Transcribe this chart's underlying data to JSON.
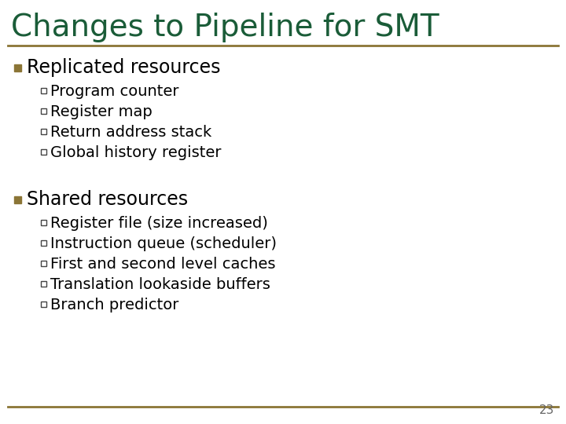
{
  "title": "Changes to Pipeline for SMT",
  "title_color": "#1a5c38",
  "title_fontsize": 28,
  "separator_color": "#8b7536",
  "background_color": "#ffffff",
  "bullet1_text": "Replicated resources",
  "bullet1_sub": [
    "Program counter",
    "Register map",
    "Return address stack",
    "Global history register"
  ],
  "bullet2_text": "Shared resources",
  "bullet2_sub": [
    "Register file (size increased)",
    "Instruction queue (scheduler)",
    "First and second level caches",
    "Translation lookaside buffers",
    "Branch predictor"
  ],
  "main_bullet_color": "#8b7536",
  "main_bullet_fontsize": 17,
  "sub_bullet_fontsize": 14,
  "text_color": "#000000",
  "page_number": "23",
  "page_number_color": "#666666",
  "page_number_fontsize": 11
}
